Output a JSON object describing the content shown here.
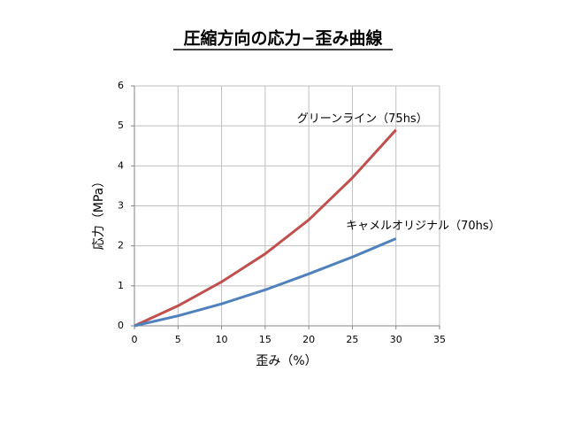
{
  "chart_data": {
    "type": "line",
    "title": "圧縮方向の応力−歪み曲線",
    "x_label": "歪み（%）",
    "y_label": "応力（MPa）",
    "x": [
      0,
      5,
      10,
      15,
      20,
      25,
      30
    ],
    "series": [
      {
        "name": "グリーンライン（75hs）",
        "color": "#c0504d",
        "values": [
          0,
          0.5,
          1.1,
          1.8,
          2.65,
          3.7,
          4.9
        ]
      },
      {
        "name": "キャメルオリジナル（70hs）",
        "color": "#4f81bd",
        "values": [
          0,
          0.25,
          0.55,
          0.9,
          1.3,
          1.72,
          2.18
        ]
      }
    ],
    "xlim": [
      0,
      35
    ],
    "xticks": [
      0,
      5,
      10,
      15,
      20,
      25,
      30,
      35
    ],
    "ylim": [
      0,
      6
    ],
    "yticks": [
      0,
      1,
      2,
      3,
      4,
      5,
      6
    ],
    "grid": true
  }
}
